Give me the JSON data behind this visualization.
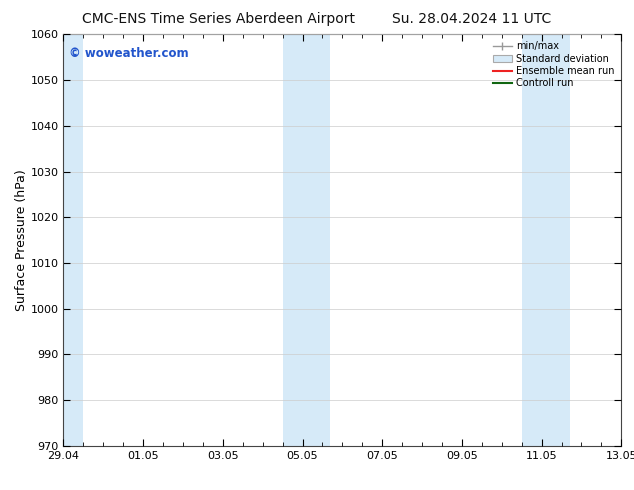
{
  "title_left": "CMC-ENS Time Series Aberdeen Airport",
  "title_right": "Su. 28.04.2024 11 UTC",
  "ylabel": "Surface Pressure (hPa)",
  "ylim": [
    970,
    1060
  ],
  "yticks": [
    970,
    980,
    990,
    1000,
    1010,
    1020,
    1030,
    1040,
    1050,
    1060
  ],
  "xtick_labels": [
    "29.04",
    "01.05",
    "03.05",
    "05.05",
    "07.05",
    "09.05",
    "11.05",
    "13.05"
  ],
  "xtick_positions": [
    0,
    2,
    4,
    6,
    8,
    10,
    12,
    14
  ],
  "bg_color": "#ffffff",
  "plot_bg_color": "#ffffff",
  "shaded_bands": [
    {
      "x_start": -0.1,
      "x_end": 0.5,
      "color": "#d6eaf8"
    },
    {
      "x_start": 5.5,
      "x_end": 6.1,
      "color": "#d6eaf8"
    },
    {
      "x_start": 6.1,
      "x_end": 6.7,
      "color": "#d6eaf8"
    },
    {
      "x_start": 11.5,
      "x_end": 12.1,
      "color": "#d6eaf8"
    },
    {
      "x_start": 12.1,
      "x_end": 12.7,
      "color": "#d6eaf8"
    }
  ],
  "watermark_text": "© woweather.com",
  "watermark_color": "#2255cc",
  "legend_labels": [
    "min/max",
    "Standard deviation",
    "Ensemble mean run",
    "Controll run"
  ],
  "legend_colors": [
    "#999999",
    "#c8dce8",
    "#ee2222",
    "#116611"
  ],
  "title_fontsize": 10,
  "tick_fontsize": 8,
  "ylabel_fontsize": 9,
  "x_total_days": 14
}
